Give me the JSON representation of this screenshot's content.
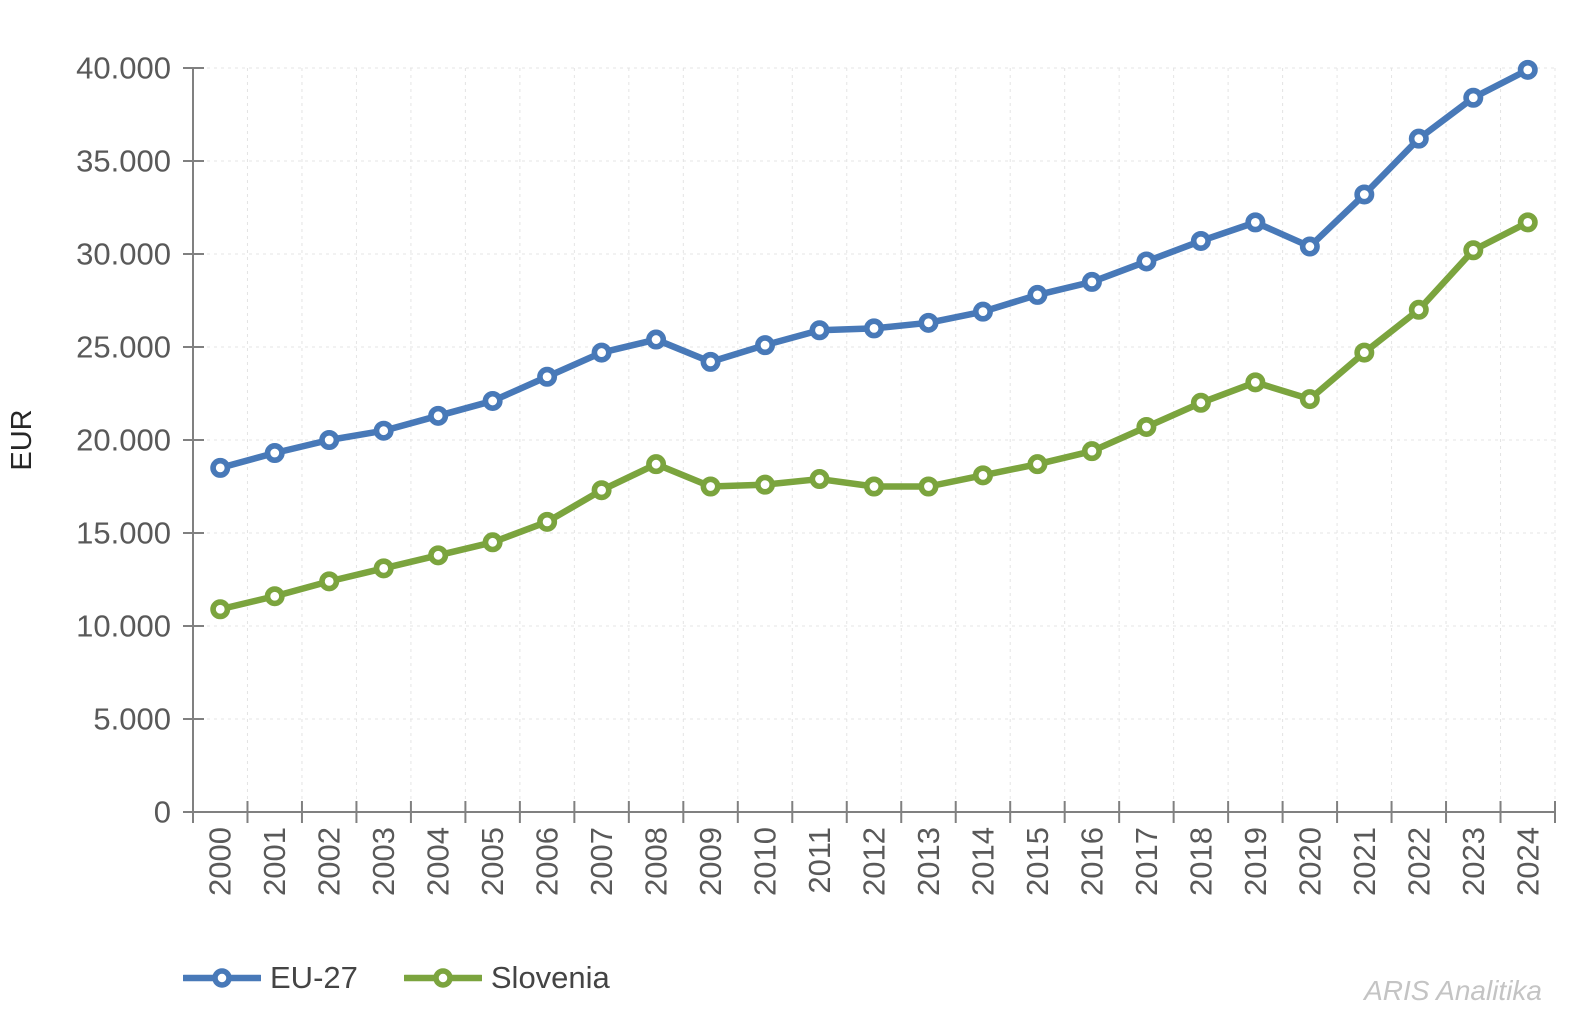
{
  "chart_data": {
    "type": "line",
    "title": "",
    "ylabel": "EUR",
    "x": [
      "2000",
      "2001",
      "2002",
      "2003",
      "2004",
      "2005",
      "2006",
      "2007",
      "2008",
      "2009",
      "2010",
      "2011",
      "2012",
      "2013",
      "2014",
      "2015",
      "2016",
      "2017",
      "2018",
      "2019",
      "2020",
      "2021",
      "2022",
      "2023",
      "2024"
    ],
    "series": [
      {
        "name": "EU-27",
        "color": "#4879b8",
        "marker": "circle",
        "values": [
          18500,
          19300,
          20000,
          20500,
          21300,
          22100,
          23400,
          24700,
          25400,
          24200,
          25100,
          25900,
          26000,
          26300,
          26900,
          27800,
          28500,
          29600,
          30700,
          31700,
          30400,
          33200,
          36200,
          38400,
          39900
        ]
      },
      {
        "name": "Slovenia",
        "color": "#7ba43e",
        "marker": "circle",
        "values": [
          10900,
          11600,
          12400,
          13100,
          13800,
          14500,
          15600,
          17300,
          18700,
          17500,
          17600,
          17900,
          17500,
          17500,
          18100,
          18700,
          19400,
          20700,
          22000,
          23100,
          22200,
          24700,
          27000,
          30200,
          31700
        ]
      }
    ],
    "ylim": [
      0,
      40000
    ],
    "ytick_interval": 5000,
    "ytick_labels": [
      "0",
      "5.000",
      "10.000",
      "15.000",
      "20.000",
      "25.000",
      "30.000",
      "35.000",
      "40.000"
    ],
    "xtick_rotation_degrees": 90,
    "grid": {
      "horizontal": true,
      "vertical": true,
      "style": "dotted"
    },
    "legend_position": "bottom-left"
  },
  "watermark": {
    "text": "ARIS Analitika"
  },
  "colors": {
    "axis": "#808080",
    "tick_labels": "#595959",
    "gridlines": "#e4e4e4",
    "y_axis_title": "#262626",
    "legend_text": "#444444",
    "watermark": "#c4c4c4",
    "background": "#ffffff"
  }
}
